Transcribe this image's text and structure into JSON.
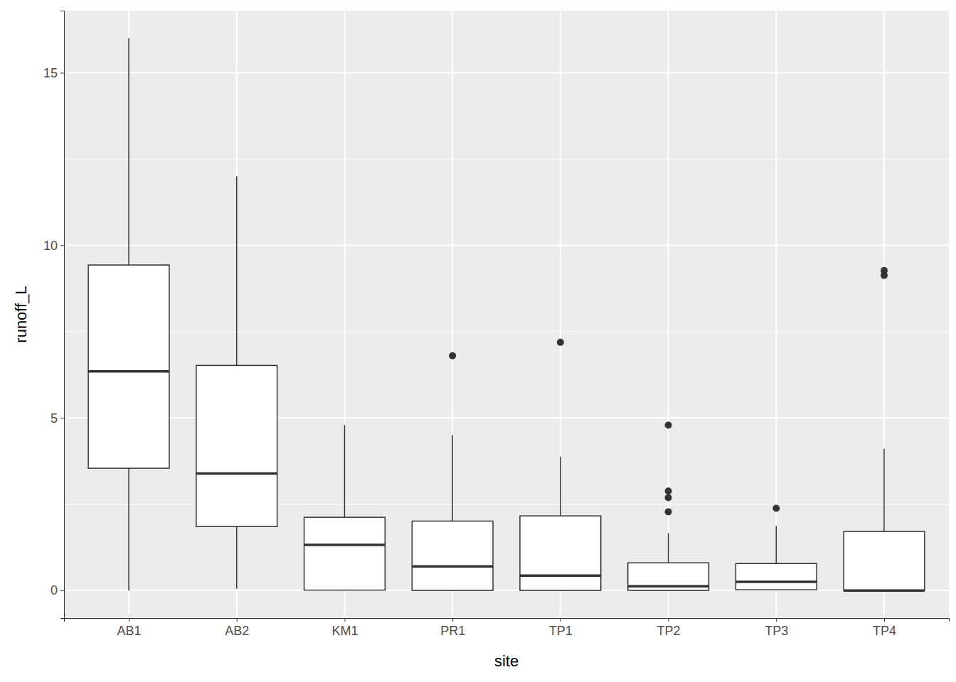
{
  "chart_data": {
    "type": "box",
    "x_label": "site",
    "y_label": "runoff_L",
    "categories": [
      "AB1",
      "AB2",
      "KM1",
      "PR1",
      "TP1",
      "TP2",
      "TP3",
      "TP4"
    ],
    "boxes": [
      {
        "min": 0,
        "q1": 3.54,
        "median": 6.35,
        "q3": 9.43,
        "max": 16,
        "outliers": []
      },
      {
        "min": 0.05,
        "q1": 1.85,
        "median": 3.39,
        "q3": 6.52,
        "max": 12,
        "outliers": []
      },
      {
        "min": 0,
        "q1": 0.01,
        "median": 1.32,
        "q3": 2.12,
        "max": 4.79,
        "outliers": []
      },
      {
        "min": 0,
        "q1": 0,
        "median": 0.7,
        "q3": 2.01,
        "max": 4.5,
        "outliers": [
          6.8
        ]
      },
      {
        "min": 0,
        "q1": 0,
        "median": 0.43,
        "q3": 2.16,
        "max": 3.88,
        "outliers": [
          7.19
        ]
      },
      {
        "min": 0,
        "q1": 0,
        "median": 0.12,
        "q3": 0.8,
        "max": 1.66,
        "outliers": [
          4.79,
          2.88,
          2.69,
          2.28
        ]
      },
      {
        "min": 0,
        "q1": 0.02,
        "median": 0.25,
        "q3": 0.78,
        "max": 1.87,
        "outliers": [
          2.38
        ]
      },
      {
        "min": 0,
        "q1": 0,
        "median": 0,
        "q3": 1.71,
        "max": 4.11,
        "outliers": [
          9.27,
          9.13
        ]
      }
    ],
    "ylim": [
      -0.8,
      16.8
    ],
    "yticks": [
      0,
      5,
      10,
      15
    ],
    "grid": true
  }
}
